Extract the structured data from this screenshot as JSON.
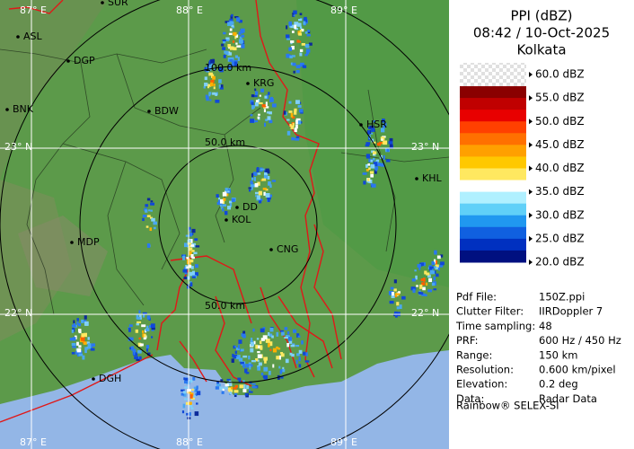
{
  "header": {
    "title": "PPI (dBZ)",
    "time": "08:42 / 10-Oct-2025",
    "site": "Kolkata"
  },
  "scale": {
    "labels": [
      "60.0 dBZ",
      "55.0 dBZ",
      "50.0 dBZ",
      "45.0 dBZ",
      "40.0 dBZ",
      "35.0 dBZ",
      "30.0 dBZ",
      "25.0 dBZ",
      "20.0 dBZ"
    ]
  },
  "info": {
    "rows": [
      [
        "Pdf File:",
        "150Z.ppi"
      ],
      [
        "Clutter Filter:",
        "IIRDoppler 7"
      ],
      [
        "Time sampling:",
        "48"
      ],
      [
        "PRF:",
        "600 Hz / 450 Hz"
      ],
      [
        "Range:",
        "150 km"
      ],
      [
        "Resolution:",
        "0.600 km/pixel"
      ],
      [
        "Elevation:",
        "0.2 deg"
      ],
      [
        "Data:",
        "Radar Data"
      ]
    ],
    "footer": "Rainbow® SELEX-SI"
  },
  "map": {
    "grid_labels": [
      "87° E",
      "88° E",
      "89° E",
      "23° N",
      "23° N",
      "22° N",
      "22° N",
      "87° E",
      "88° E",
      "89° E"
    ],
    "range_labels": [
      "100.0 km",
      "50.0 km",
      "50.0 km"
    ],
    "places": [
      "SUR",
      "ASL",
      "DGP",
      "BNK",
      "BDW",
      "KRG",
      "HSR",
      "KHL",
      "MDP",
      "DD",
      "KOL",
      "CNG",
      "DGH"
    ]
  }
}
